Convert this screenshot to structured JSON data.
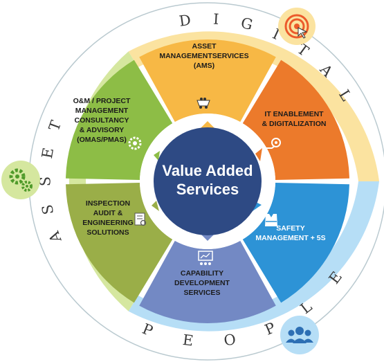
{
  "center": {
    "line1": "Value Added",
    "line2": "Services"
  },
  "ring_labels": {
    "digital": "DIGITAL",
    "asset": "ASSET",
    "people": "PEOPLE"
  },
  "segments": [
    {
      "lines": [
        "ASSET",
        "MANAGEMENTSERVICES",
        "(AMS)"
      ],
      "color": "#f7b845"
    },
    {
      "lines": [
        "IT ENABLEMENT",
        "& DIGITALIZATION"
      ],
      "color": "#ec7a2b"
    },
    {
      "lines": [
        "SAFETY",
        "MANAGEMENT + 5S"
      ],
      "color": "#2d93d6"
    },
    {
      "lines": [
        "CAPABILITY",
        "DEVELOPMENT",
        "SERVICES"
      ],
      "color": "#7389c4"
    },
    {
      "lines": [
        "INSPECTION",
        "AUDIT &",
        "ENGINEERING",
        "SOLUTIONS"
      ],
      "color": "#9aae48"
    },
    {
      "lines": [
        "O&M / PROJECT",
        "MANAGEMENT",
        "CONSULTANCY",
        "& ADVISORY",
        "(OMAS/PMAS)"
      ],
      "color": "#8dbd46"
    }
  ],
  "icons": {
    "digital_badge": "target-cursor-icon",
    "asset_badge": "gears-icon",
    "people_badge": "people-group-icon"
  },
  "colors": {
    "digital_ring": "#fbe3a0",
    "asset_ring": "#d5e79f",
    "people_ring": "#b6def6",
    "center": "#2e4a84",
    "outline": "#b9c9cf"
  }
}
